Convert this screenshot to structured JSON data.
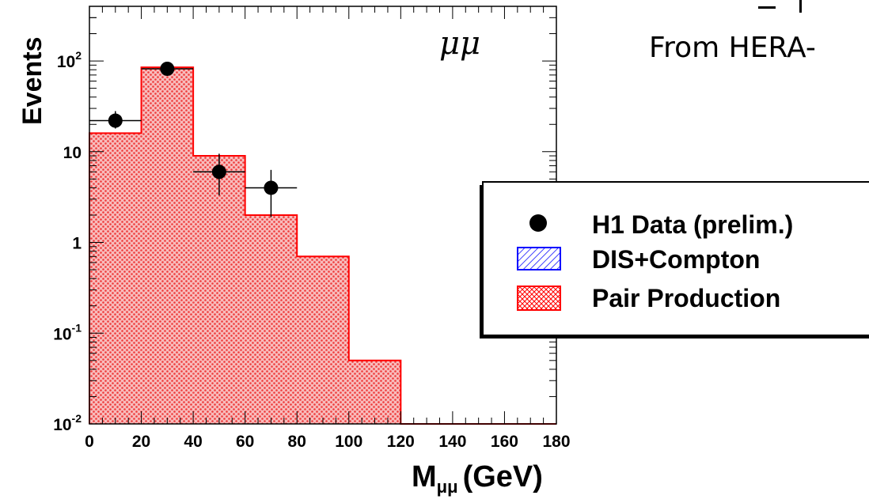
{
  "slide": {
    "partial_title": "From HERA-"
  },
  "chart_data": {
    "type": "bar",
    "subtype": "histogram-with-data-points",
    "xlabel_main": "M",
    "xlabel_sub": "μμ",
    "xlabel_unit": "(GeV)",
    "ylabel": "Events",
    "annotation": "μμ",
    "xlim": [
      0,
      180
    ],
    "ylim": [
      0.01,
      400
    ],
    "yscale": "log",
    "x_ticks": [
      "0",
      "20",
      "40",
      "60",
      "80",
      "100",
      "120",
      "140",
      "160",
      "180"
    ],
    "y_ticks": [
      {
        "value": 0.01,
        "base": "10",
        "exp": "-2"
      },
      {
        "value": 0.1,
        "base": "10",
        "exp": "-1"
      },
      {
        "value": 1,
        "base": "1",
        "exp": ""
      },
      {
        "value": 10,
        "base": "10",
        "exp": ""
      },
      {
        "value": 100,
        "base": "10",
        "exp": "2"
      }
    ],
    "histogram": {
      "name": "Pair Production",
      "bin_edges": [
        0,
        20,
        40,
        60,
        80,
        100,
        120,
        140,
        160,
        180
      ],
      "values": [
        16,
        85,
        9,
        2,
        0.7,
        0.05,
        0,
        0,
        0
      ]
    },
    "points": {
      "name": "H1 Data (prelim.)",
      "x": [
        10,
        30,
        50,
        70
      ],
      "y": [
        22,
        82,
        6,
        4
      ],
      "y_low": [
        18,
        75,
        3.3,
        1.9
      ],
      "y_high": [
        28,
        92,
        9.5,
        6.3
      ]
    },
    "legend": {
      "placement": "right",
      "entries": [
        {
          "label": "H1 Data (prelim.)",
          "kind": "marker",
          "color": "#000000"
        },
        {
          "label": "DIS+Compton",
          "kind": "hatch",
          "color": "#1a1aff"
        },
        {
          "label": "Pair Production",
          "kind": "crosshatch",
          "color": "#ff1a1a"
        }
      ]
    },
    "colors": {
      "pair_fill": "#f4a0a0",
      "pair_line": "#ff0000",
      "dis_line": "#0000ff"
    }
  }
}
